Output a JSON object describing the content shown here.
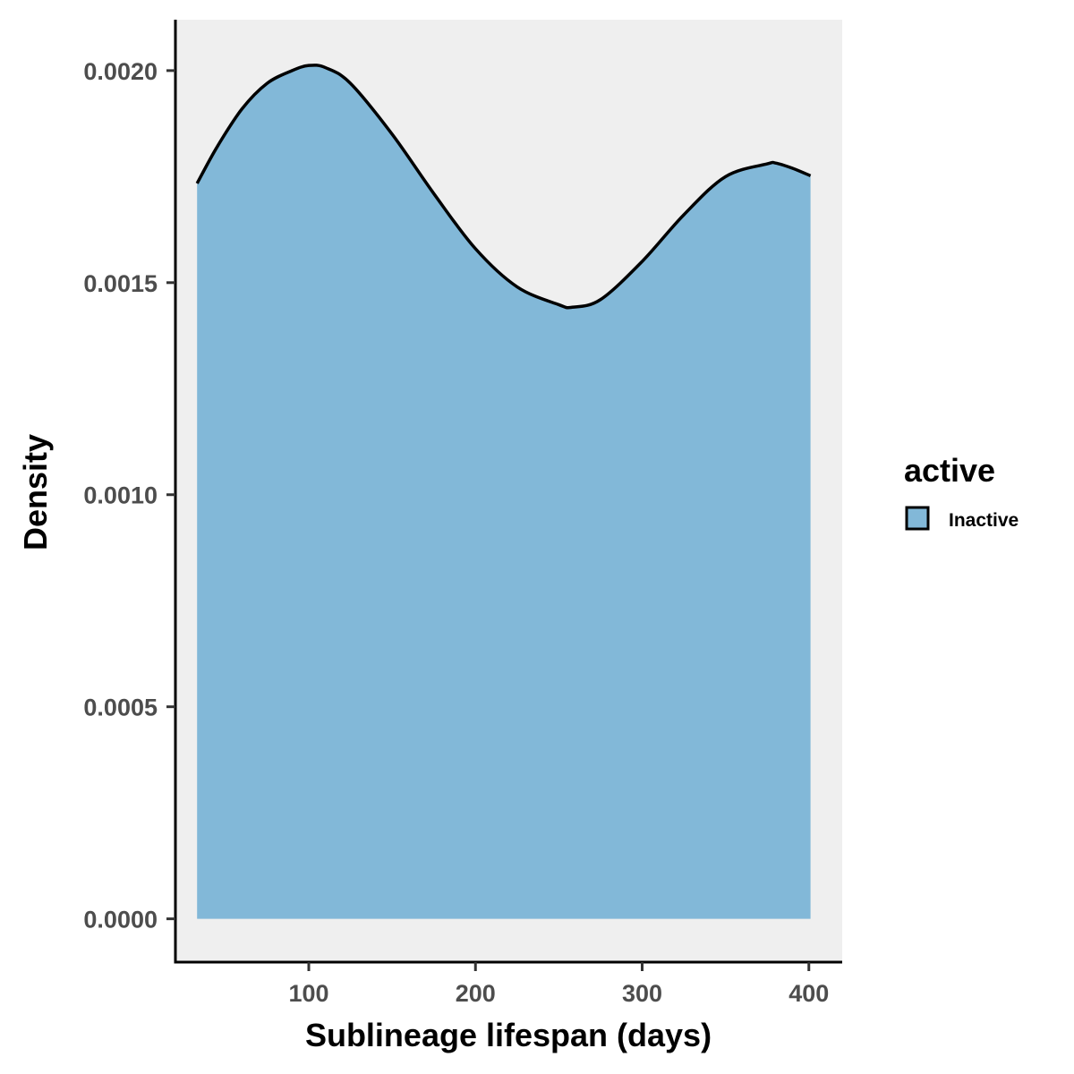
{
  "chart_data": {
    "type": "area",
    "xlabel": "Sublineage lifespan (days)",
    "ylabel": "Density",
    "xlim": [
      20,
      420
    ],
    "ylim": [
      -0.0001,
      0.00212
    ],
    "x_ticks": [
      100,
      200,
      300,
      400
    ],
    "x_tick_labels": [
      "100",
      "200",
      "300",
      "400"
    ],
    "y_ticks": [
      0,
      0.0005,
      0.001,
      0.0015,
      0.002
    ],
    "y_tick_labels": [
      "0.0000",
      "0.0005",
      "0.0010",
      "0.0015",
      "0.0020"
    ],
    "grid": false,
    "panel_background": "#efefef",
    "legend": {
      "title": "active",
      "position": "right",
      "entries": [
        {
          "label": "Inactive",
          "color": "#82b8d8"
        }
      ]
    },
    "series": [
      {
        "name": "Inactive",
        "fill": "#82b8d8",
        "stroke": "#000000",
        "x": [
          33,
          45,
          60,
          75,
          90,
          100,
          110,
          125,
          150,
          175,
          200,
          225,
          250,
          258,
          275,
          300,
          325,
          350,
          375,
          380,
          390,
          401
        ],
        "y": [
          0.001734,
          0.00182,
          0.00191,
          0.00197,
          0.002,
          0.002012,
          0.002007,
          0.00197,
          0.00185,
          0.00171,
          0.00158,
          0.00149,
          0.001448,
          0.001442,
          0.00146,
          0.00155,
          0.00166,
          0.00175,
          0.00178,
          0.001782,
          0.00177,
          0.001752
        ]
      }
    ]
  }
}
